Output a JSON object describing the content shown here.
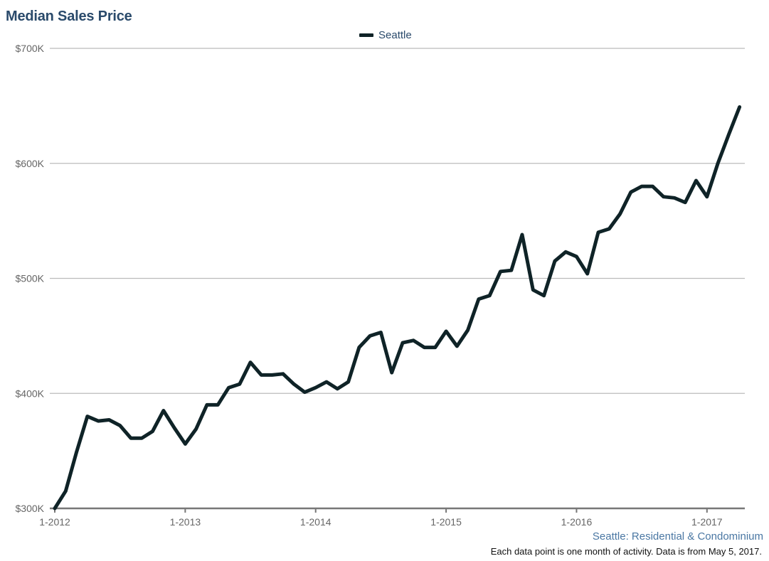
{
  "title": "Median Sales Price",
  "legend": [
    {
      "label": "Seattle",
      "color": "#0f2327"
    }
  ],
  "source_label": "Seattle: Residential & Condominium",
  "footnote": "Each data point is one month of activity. Data is from May 5, 2017.",
  "colors": {
    "line": "#0f2327",
    "grid": "#bbbbbb",
    "axis": "#777777",
    "title": "#2a4a6b",
    "source": "#4a77a3"
  },
  "chart_data": {
    "type": "line",
    "title": "Median Sales Price",
    "xlabel": "",
    "ylabel": "",
    "ylim": [
      300,
      700
    ],
    "y_unit": "$K",
    "y_ticks": [
      "$300K",
      "$400K",
      "$500K",
      "$600K",
      "$700K"
    ],
    "x_ticks": [
      "1-2012",
      "1-2013",
      "1-2014",
      "1-2015",
      "1-2016",
      "1-2017"
    ],
    "legend_position": "top-center",
    "grid": "horizontal",
    "x_start": "1-2012",
    "x_interval": "month",
    "series": [
      {
        "name": "Seattle",
        "values": [
          300,
          315,
          349,
          380,
          376,
          377,
          372,
          361,
          361,
          367,
          385,
          370,
          356,
          369,
          390,
          390,
          405,
          408,
          427,
          416,
          416,
          417,
          408,
          401,
          405,
          410,
          404,
          410,
          440,
          450,
          453,
          418,
          444,
          446,
          440,
          440,
          454,
          441,
          455,
          482,
          485,
          506,
          507,
          538,
          490,
          485,
          515,
          523,
          519,
          504,
          540,
          543,
          556,
          575,
          580,
          580,
          571,
          570,
          566,
          585,
          571,
          600,
          625,
          649
        ]
      }
    ]
  }
}
